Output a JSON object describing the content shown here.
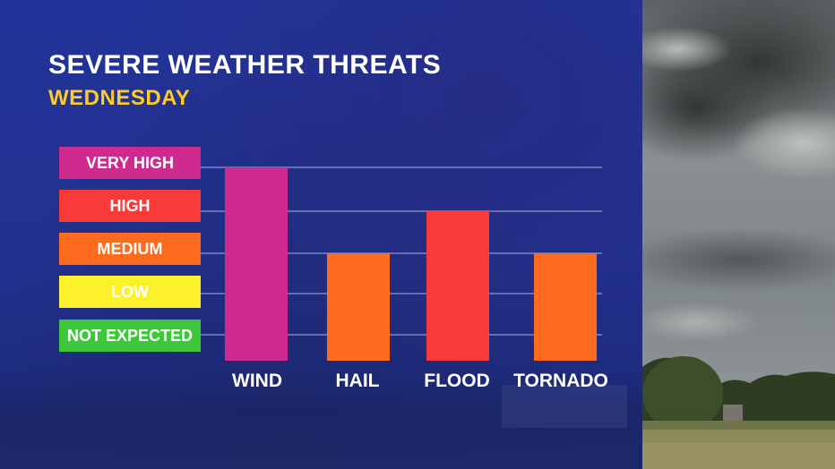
{
  "title": "SEVERE WEATHER THREATS",
  "subtitle": "WEDNESDAY",
  "colors": {
    "not_expected": "#3cc83a",
    "low": "#fdf12b",
    "medium": "#fe6b1e",
    "high": "#fa3939",
    "very_high": "#cf2a8d",
    "title": "#ffffff",
    "subtitle": "#ffcc22"
  },
  "legend": [
    {
      "label": "VERY HIGH",
      "level": 4,
      "color": "#cf2a8d",
      "text_color": "#ffffff"
    },
    {
      "label": "HIGH",
      "level": 3,
      "color": "#fa3939",
      "text_color": "#ffffff"
    },
    {
      "label": "MEDIUM",
      "level": 2,
      "color": "#fe6b1e",
      "text_color": "#ffffff"
    },
    {
      "label": "LOW",
      "level": 1,
      "color": "#fdf12b",
      "text_color": "#ffffff"
    },
    {
      "label": "NOT EXPECTED",
      "level": 0,
      "color": "#3cc83a",
      "text_color": "#ffffff"
    }
  ],
  "chart_data": {
    "type": "bar",
    "title": "SEVERE WEATHER THREATS",
    "subtitle": "WEDNESDAY",
    "categories": [
      "WIND",
      "HAIL",
      "FLOOD",
      "TORNADO"
    ],
    "values": [
      4,
      2,
      3,
      2
    ],
    "value_labels": [
      "VERY HIGH",
      "MEDIUM",
      "HIGH",
      "MEDIUM"
    ],
    "bar_colors": [
      "#cf2a8d",
      "#fe6b1e",
      "#fa3939",
      "#fe6b1e"
    ],
    "ylim": [
      0,
      4
    ],
    "ytick_labels": [
      "NOT EXPECTED",
      "LOW",
      "MEDIUM",
      "HIGH",
      "VERY HIGH"
    ],
    "grid": true,
    "legend": "left"
  }
}
